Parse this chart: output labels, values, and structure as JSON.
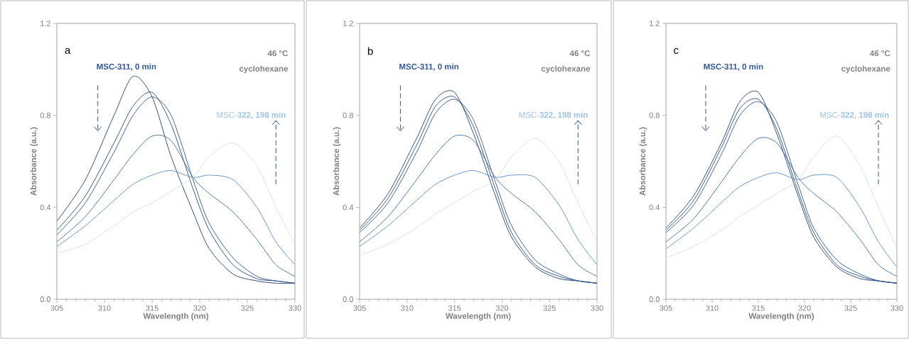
{
  "chart_data": [
    {
      "type": "line",
      "marker": "none",
      "xlabel": "Wavelength (nm)",
      "ylabel": "Absorbance (a.u.)",
      "annotations": [
        "a",
        "**MSC-311, 0 min**",
        "**46 °C**",
        "**cyclohexane**",
        "MSC-**322, 198 min**"
      ],
      "x": [
        305,
        308,
        311,
        313,
        315,
        317,
        319.3,
        321,
        323.5,
        326,
        328,
        330
      ],
      "xlim": [
        305,
        330
      ],
      "xticks": [
        305,
        310,
        315,
        320,
        325,
        330
      ],
      "ylim": [
        0,
        1.2
      ],
      "yticks": [
        {
          "value": 0,
          "label": "0.0"
        },
        {
          "value": 0.4,
          "label": "0.4"
        },
        {
          "value": 0.8,
          "label": "0.8"
        },
        {
          "value": 1.2,
          "label": "1.2"
        }
      ],
      "series": [
        {
          "color": "#1f3b66",
          "values": [
            0.34,
            0.52,
            0.8,
            0.97,
            0.88,
            0.62,
            0.38,
            0.22,
            0.11,
            0.08,
            0.07,
            0.07
          ]
        },
        {
          "color": "#24477a",
          "values": [
            0.3,
            0.45,
            0.68,
            0.84,
            0.9,
            0.76,
            0.48,
            0.3,
            0.15,
            0.09,
            0.08,
            0.07
          ]
        },
        {
          "color": "#2a548c",
          "values": [
            0.28,
            0.42,
            0.64,
            0.8,
            0.88,
            0.8,
            0.52,
            0.33,
            0.18,
            0.1,
            0.08,
            0.07
          ]
        },
        {
          "color": "#3a6ba6",
          "values": [
            0.25,
            0.36,
            0.52,
            0.63,
            0.71,
            0.69,
            0.53,
            0.46,
            0.38,
            0.26,
            0.15,
            0.1
          ]
        },
        {
          "color": "#5b8cc6",
          "values": [
            0.23,
            0.32,
            0.43,
            0.5,
            0.54,
            0.56,
            0.53,
            0.54,
            0.52,
            0.4,
            0.25,
            0.15
          ]
        },
        {
          "color": "#d3dff0",
          "values": [
            0.2,
            0.24,
            0.32,
            0.38,
            0.42,
            0.47,
            0.53,
            0.62,
            0.68,
            0.58,
            0.4,
            0.24
          ]
        }
      ]
    },
    {
      "type": "line",
      "marker": "none",
      "xlabel": "Wavelength (nm)",
      "ylabel": "Absorbance (a.u.)",
      "annotations": [
        "b",
        "**MSC-311, 0 min**",
        "**46 °C**",
        "**cyclohexane**",
        "MSC-**322, 198 min**"
      ],
      "x": [
        305,
        308,
        311,
        313,
        315,
        317,
        319.3,
        321,
        323.5,
        326,
        328,
        330
      ],
      "xlim": [
        305,
        330
      ],
      "xticks": [
        305,
        310,
        315,
        320,
        325,
        330
      ],
      "ylim": [
        0,
        1.2
      ],
      "yticks": [
        {
          "value": 0,
          "label": "0.0"
        },
        {
          "value": 0.4,
          "label": "0.4"
        },
        {
          "value": 0.8,
          "label": "0.8"
        },
        {
          "value": 1.2,
          "label": "1.2"
        }
      ],
      "series": [
        {
          "color": "#1f3b66",
          "values": [
            0.31,
            0.46,
            0.7,
            0.87,
            0.9,
            0.72,
            0.45,
            0.27,
            0.14,
            0.09,
            0.08,
            0.07
          ]
        },
        {
          "color": "#24477a",
          "values": [
            0.3,
            0.44,
            0.67,
            0.84,
            0.88,
            0.75,
            0.48,
            0.29,
            0.15,
            0.1,
            0.08,
            0.07
          ]
        },
        {
          "color": "#2a548c",
          "values": [
            0.29,
            0.42,
            0.64,
            0.81,
            0.87,
            0.78,
            0.51,
            0.32,
            0.17,
            0.11,
            0.08,
            0.07
          ]
        },
        {
          "color": "#3a6ba6",
          "values": [
            0.25,
            0.36,
            0.52,
            0.63,
            0.71,
            0.69,
            0.53,
            0.46,
            0.38,
            0.26,
            0.15,
            0.1
          ]
        },
        {
          "color": "#5b8cc6",
          "values": [
            0.23,
            0.32,
            0.43,
            0.5,
            0.54,
            0.56,
            0.53,
            0.54,
            0.53,
            0.41,
            0.26,
            0.15
          ]
        },
        {
          "color": "#d3dff0",
          "values": [
            0.19,
            0.24,
            0.31,
            0.37,
            0.42,
            0.47,
            0.52,
            0.62,
            0.7,
            0.6,
            0.42,
            0.25
          ]
        }
      ]
    },
    {
      "type": "line",
      "marker": "none",
      "xlabel": "Wavelength (nm)",
      "ylabel": "Absorbance (a.u.)",
      "annotations": [
        "c",
        "**MSC-311, 0 min**",
        "**46 °C**",
        "**cyclohexane**",
        "MSC-**322, 198 min**"
      ],
      "x": [
        305,
        308,
        311,
        313,
        315,
        317,
        319.3,
        321,
        323.5,
        326,
        328,
        330
      ],
      "xlim": [
        305,
        330
      ],
      "xticks": [
        305,
        310,
        315,
        320,
        325,
        330
      ],
      "ylim": [
        0,
        1.2
      ],
      "yticks": [
        {
          "value": 0,
          "label": "0.0"
        },
        {
          "value": 0.4,
          "label": "0.4"
        },
        {
          "value": 0.8,
          "label": "0.8"
        },
        {
          "value": 1.2,
          "label": "1.2"
        }
      ],
      "series": [
        {
          "color": "#1f3b66",
          "values": [
            0.31,
            0.45,
            0.68,
            0.86,
            0.9,
            0.72,
            0.45,
            0.27,
            0.14,
            0.09,
            0.08,
            0.07
          ]
        },
        {
          "color": "#24477a",
          "values": [
            0.3,
            0.43,
            0.66,
            0.83,
            0.87,
            0.74,
            0.47,
            0.29,
            0.15,
            0.1,
            0.08,
            0.07
          ]
        },
        {
          "color": "#2a548c",
          "values": [
            0.29,
            0.41,
            0.63,
            0.8,
            0.86,
            0.77,
            0.5,
            0.31,
            0.17,
            0.11,
            0.08,
            0.07
          ]
        },
        {
          "color": "#3a6ba6",
          "values": [
            0.25,
            0.35,
            0.51,
            0.62,
            0.7,
            0.68,
            0.53,
            0.46,
            0.38,
            0.26,
            0.15,
            0.1
          ]
        },
        {
          "color": "#5b8cc6",
          "values": [
            0.22,
            0.31,
            0.42,
            0.49,
            0.53,
            0.55,
            0.52,
            0.54,
            0.53,
            0.4,
            0.25,
            0.14
          ]
        },
        {
          "color": "#d3dff0",
          "values": [
            0.18,
            0.23,
            0.3,
            0.36,
            0.41,
            0.46,
            0.52,
            0.62,
            0.71,
            0.58,
            0.4,
            0.22
          ]
        }
      ]
    }
  ]
}
